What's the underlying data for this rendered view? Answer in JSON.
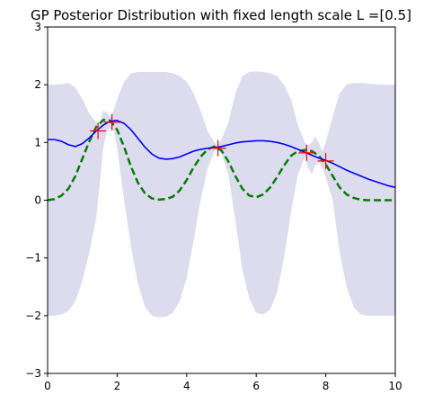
{
  "chart_data": {
    "type": "line",
    "title": "GP Posterior Distribution with fixed length scale L =[0.5]",
    "xlabel": "",
    "ylabel": "",
    "xlim": [
      0,
      10
    ],
    "ylim": [
      -3,
      3
    ],
    "xticks": [
      0,
      2,
      4,
      6,
      8,
      10
    ],
    "yticks": [
      -3,
      -2,
      -1,
      0,
      1,
      2,
      3
    ],
    "xtick_labels": [
      "0",
      "2",
      "4",
      "6",
      "8",
      "10"
    ],
    "ytick_labels": [
      "−3",
      "−2",
      "−1",
      "0",
      "1",
      "2",
      "3"
    ],
    "grid": false,
    "legend": "none",
    "series": [
      {
        "kind": "band",
        "color": "#dcdcee",
        "x": [
          0,
          0.2,
          0.4,
          0.6,
          0.8,
          1.0,
          1.2,
          1.4,
          1.5,
          1.6,
          1.7,
          1.8,
          1.9,
          2.0,
          2.2,
          2.4,
          2.6,
          2.8,
          3.0,
          3.2,
          3.4,
          3.6,
          3.8,
          4.0,
          4.2,
          4.4,
          4.6,
          4.8,
          4.9,
          5.0,
          5.2,
          5.4,
          5.6,
          5.8,
          6.0,
          6.2,
          6.4,
          6.6,
          6.8,
          7.0,
          7.2,
          7.4,
          7.5,
          7.6,
          7.7,
          7.8,
          7.9,
          8.0,
          8.2,
          8.4,
          8.6,
          8.8,
          9.0,
          9.2,
          9.4,
          9.6,
          9.8,
          10.0
        ],
        "upper": [
          2.0,
          2.0,
          2.01,
          2.03,
          1.95,
          1.75,
          1.5,
          1.35,
          1.3,
          1.55,
          1.52,
          1.45,
          1.55,
          1.75,
          2.05,
          2.2,
          2.22,
          2.22,
          2.22,
          2.22,
          2.22,
          2.2,
          2.15,
          2.05,
          1.85,
          1.55,
          1.2,
          1.0,
          0.95,
          1.05,
          1.35,
          1.85,
          2.15,
          2.22,
          2.23,
          2.22,
          2.2,
          2.15,
          2.0,
          1.75,
          1.3,
          1.0,
          0.95,
          1.0,
          1.1,
          1.0,
          0.85,
          1.0,
          1.45,
          1.85,
          2.0,
          2.03,
          2.03,
          2.02,
          2.01,
          2.0,
          2.0,
          2.0
        ],
        "lower": [
          -2.0,
          -2.0,
          -1.98,
          -1.92,
          -1.75,
          -1.4,
          -0.9,
          -0.3,
          0.3,
          0.9,
          1.2,
          1.25,
          1.2,
          0.9,
          0.0,
          -0.8,
          -1.45,
          -1.85,
          -2.0,
          -2.03,
          -2.02,
          -1.95,
          -1.75,
          -1.35,
          -0.7,
          0.0,
          0.55,
          0.85,
          0.87,
          0.8,
          0.45,
          -0.35,
          -1.2,
          -1.7,
          -1.95,
          -1.98,
          -1.9,
          -1.6,
          -1.0,
          -0.2,
          0.45,
          0.75,
          0.55,
          0.45,
          0.6,
          0.65,
          0.55,
          0.4,
          0.0,
          -0.9,
          -1.5,
          -1.85,
          -1.98,
          -2.0,
          -2.0,
          -2.0,
          -2.0,
          -2.0
        ]
      },
      {
        "kind": "line",
        "style": "dashed",
        "color": "#008000",
        "x": [
          0,
          0.2,
          0.4,
          0.6,
          0.8,
          1.0,
          1.2,
          1.4,
          1.6,
          1.8,
          2.0,
          2.2,
          2.4,
          2.6,
          2.8,
          3.0,
          3.2,
          3.4,
          3.6,
          3.8,
          4.0,
          4.2,
          4.4,
          4.6,
          4.8,
          5.0,
          5.2,
          5.4,
          5.6,
          5.8,
          6.0,
          6.2,
          6.4,
          6.6,
          6.8,
          7.0,
          7.2,
          7.4,
          7.6,
          7.8,
          8.0,
          8.2,
          8.4,
          8.6,
          8.8,
          9.0,
          9.2,
          9.4,
          9.6,
          9.8,
          10.0
        ],
        "y": [
          0.0,
          0.02,
          0.08,
          0.2,
          0.42,
          0.72,
          1.02,
          1.27,
          1.39,
          1.38,
          1.22,
          0.92,
          0.58,
          0.3,
          0.12,
          0.03,
          0.01,
          0.02,
          0.06,
          0.17,
          0.35,
          0.57,
          0.75,
          0.88,
          0.93,
          0.86,
          0.67,
          0.42,
          0.2,
          0.08,
          0.05,
          0.1,
          0.22,
          0.4,
          0.6,
          0.77,
          0.85,
          0.87,
          0.85,
          0.77,
          0.62,
          0.42,
          0.22,
          0.1,
          0.04,
          0.01,
          0.0,
          0.0,
          0.0,
          0.0,
          0.0
        ]
      },
      {
        "kind": "line",
        "style": "solid",
        "color": "#0000ff",
        "x": [
          0,
          0.2,
          0.4,
          0.6,
          0.8,
          1.0,
          1.2,
          1.4,
          1.6,
          1.8,
          2.0,
          2.2,
          2.4,
          2.6,
          2.8,
          3.0,
          3.2,
          3.4,
          3.6,
          3.8,
          4.0,
          4.2,
          4.4,
          4.6,
          4.8,
          5.0,
          5.2,
          5.4,
          5.6,
          5.8,
          6.0,
          6.2,
          6.4,
          6.6,
          6.8,
          7.0,
          7.2,
          7.4,
          7.6,
          7.8,
          8.0,
          8.2,
          8.4,
          8.6,
          8.8,
          9.0,
          9.2,
          9.4,
          9.6,
          9.8,
          10.0
        ],
        "y": [
          1.05,
          1.05,
          1.02,
          0.96,
          0.93,
          0.98,
          1.08,
          1.2,
          1.3,
          1.37,
          1.38,
          1.33,
          1.22,
          1.07,
          0.92,
          0.8,
          0.73,
          0.71,
          0.72,
          0.75,
          0.8,
          0.85,
          0.88,
          0.9,
          0.91,
          0.93,
          0.96,
          0.99,
          1.01,
          1.02,
          1.03,
          1.03,
          1.02,
          1.0,
          0.97,
          0.93,
          0.88,
          0.83,
          0.78,
          0.73,
          0.69,
          0.64,
          0.58,
          0.52,
          0.47,
          0.42,
          0.37,
          0.33,
          0.29,
          0.25,
          0.22
        ]
      }
    ],
    "markers": {
      "symbol": "+",
      "color": "#ff0000",
      "points": [
        {
          "x": 1.45,
          "y": 1.2
        },
        {
          "x": 1.85,
          "y": 1.35
        },
        {
          "x": 4.9,
          "y": 0.9
        },
        {
          "x": 7.45,
          "y": 0.82
        },
        {
          "x": 8.0,
          "y": 0.68
        }
      ]
    }
  }
}
